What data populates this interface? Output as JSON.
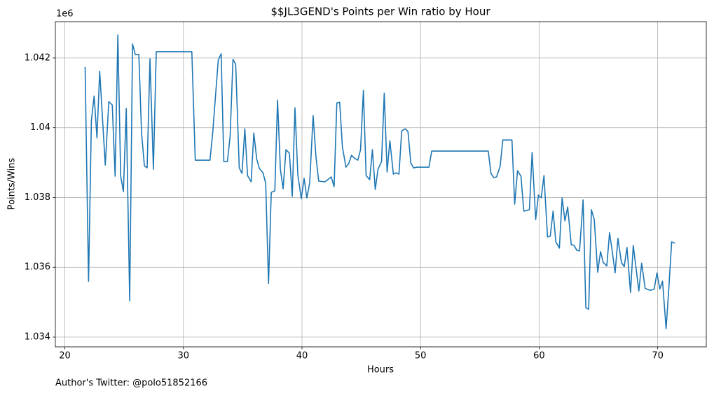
{
  "chart_data": {
    "type": "line",
    "title": "$$JL3GEND's Points per Win ratio by Hour",
    "xlabel": "Hours",
    "ylabel": "Points/Wins",
    "y_offset_label": "1e6",
    "footer": "Author's Twitter: @polo51852166",
    "xlim": [
      19.2,
      74.1
    ],
    "ylim": [
      1.03372,
      1.04304
    ],
    "xticks": [
      20,
      30,
      40,
      50,
      60,
      70
    ],
    "yticks": [
      1.034,
      1.036,
      1.038,
      1.04,
      1.042
    ],
    "grid": true,
    "x": [
      21.71,
      22.0,
      22.24,
      22.47,
      22.71,
      22.94,
      23.41,
      23.71,
      24.0,
      24.24,
      24.47,
      24.71,
      24.94,
      25.18,
      25.47,
      25.71,
      25.94,
      26.24,
      26.47,
      26.71,
      26.94,
      27.18,
      27.47,
      27.71,
      30.71,
      31.0,
      32.24,
      32.47,
      32.94,
      33.18,
      33.41,
      33.71,
      33.94,
      34.18,
      34.41,
      34.71,
      34.94,
      35.18,
      35.41,
      35.71,
      35.94,
      36.18,
      36.41,
      36.71,
      36.94,
      37.18,
      37.41,
      37.71,
      37.94,
      38.18,
      38.41,
      38.65,
      38.94,
      39.18,
      39.41,
      39.65,
      39.94,
      40.18,
      40.41,
      40.65,
      40.94,
      41.18,
      41.41,
      41.94,
      42.47,
      42.71,
      42.94,
      43.18,
      43.41,
      43.71,
      43.94,
      44.18,
      44.41,
      44.71,
      44.94,
      45.18,
      45.41,
      45.71,
      45.94,
      46.18,
      46.41,
      46.71,
      46.94,
      47.18,
      47.41,
      47.71,
      47.94,
      48.18,
      48.41,
      48.71,
      48.94,
      49.18,
      49.41,
      49.71,
      50.71,
      50.94,
      55.71,
      55.94,
      56.18,
      56.41,
      56.71,
      56.94,
      57.71,
      57.94,
      58.18,
      58.47,
      58.71,
      59.18,
      59.41,
      59.71,
      59.94,
      60.18,
      60.41,
      60.71,
      60.94,
      61.18,
      61.41,
      61.71,
      61.94,
      62.18,
      62.41,
      62.71,
      62.94,
      63.18,
      63.41,
      63.71,
      63.94,
      64.18,
      64.41,
      64.65,
      64.94,
      65.18,
      65.41,
      65.71,
      65.94,
      66.18,
      66.41,
      66.65,
      66.94,
      67.18,
      67.41,
      67.71,
      67.94,
      68.18,
      68.41,
      68.65,
      68.94,
      69.18,
      69.41,
      69.71,
      69.94,
      70.18,
      70.41,
      70.71,
      70.94,
      71.18,
      71.47
    ],
    "series": [
      {
        "name": "Points/Wins",
        "color": "#1f77b4",
        "values": [
          1.04174,
          1.0356,
          1.04021,
          1.04091,
          1.03971,
          1.04162,
          1.03893,
          1.04075,
          1.04065,
          1.03861,
          1.04266,
          1.03861,
          1.03817,
          1.04055,
          1.03504,
          1.0424,
          1.0421,
          1.0421,
          1.03985,
          1.03891,
          1.03885,
          1.04198,
          1.03881,
          1.04218,
          1.04218,
          1.03907,
          1.03907,
          1.03985,
          1.04194,
          1.04212,
          1.03903,
          1.03903,
          1.03975,
          1.04196,
          1.04182,
          1.03885,
          1.03869,
          1.03997,
          1.03863,
          1.03845,
          1.03985,
          1.03911,
          1.03883,
          1.03871,
          1.03841,
          1.03554,
          1.03815,
          1.03819,
          1.04079,
          1.03881,
          1.03825,
          1.03937,
          1.03927,
          1.03803,
          1.04057,
          1.03865,
          1.03797,
          1.03855,
          1.03799,
          1.03841,
          1.04035,
          1.03917,
          1.03847,
          1.03845,
          1.03859,
          1.03831,
          1.04071,
          1.04073,
          1.03945,
          1.03887,
          1.03897,
          1.03921,
          1.03913,
          1.03907,
          1.03937,
          1.04107,
          1.03863,
          1.03851,
          1.03937,
          1.03823,
          1.03881,
          1.03903,
          1.04099,
          1.03873,
          1.03963,
          1.03867,
          1.03871,
          1.03867,
          1.03991,
          1.03997,
          1.03989,
          1.03899,
          1.03885,
          1.03887,
          1.03887,
          1.03933,
          1.03933,
          1.03869,
          1.03857,
          1.03859,
          1.03889,
          1.03965,
          1.03965,
          1.03781,
          1.03877,
          1.03861,
          1.03761,
          1.03765,
          1.03929,
          1.03737,
          1.03807,
          1.03799,
          1.03863,
          1.03687,
          1.03689,
          1.03761,
          1.03673,
          1.03655,
          1.03799,
          1.03733,
          1.03773,
          1.03665,
          1.03663,
          1.03649,
          1.03647,
          1.03793,
          1.03484,
          1.0348,
          1.03765,
          1.03737,
          1.03586,
          1.03645,
          1.03614,
          1.03604,
          1.03699,
          1.03643,
          1.03584,
          1.03683,
          1.03614,
          1.03602,
          1.03657,
          1.03528,
          1.03663,
          1.03596,
          1.03532,
          1.03612,
          1.0354,
          1.03536,
          1.03534,
          1.03538,
          1.03584,
          1.03538,
          1.0356,
          1.03424,
          1.0354,
          1.03673,
          1.03669
        ]
      }
    ]
  }
}
